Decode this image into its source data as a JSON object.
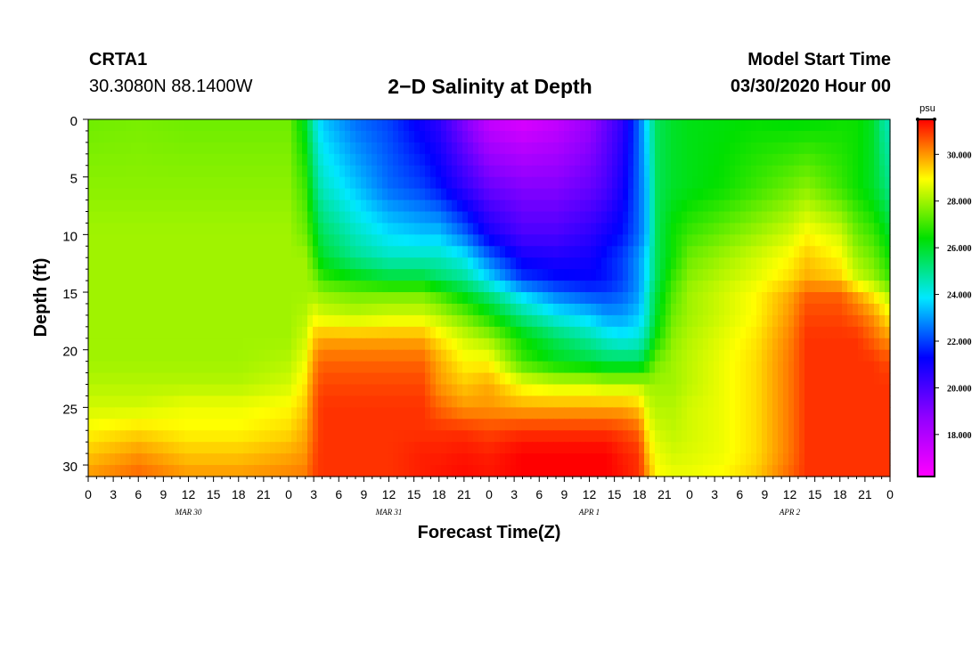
{
  "header": {
    "station_name": "CRTA1",
    "station_coords": "30.3080N 88.1400W",
    "title": "2−D Salinity at Depth",
    "start_label": "Model Start Time",
    "start_value": "03/30/2020 Hour 00"
  },
  "chart_data": {
    "type": "heatmap",
    "title": "2−D Salinity at Depth",
    "xlabel": "Forecast Time(Z)",
    "ylabel": "Depth (ft)",
    "x_tick_labels": [
      "0",
      "3",
      "6",
      "9",
      "12",
      "15",
      "18",
      "21",
      "0",
      "3",
      "6",
      "9",
      "12",
      "15",
      "18",
      "21",
      "0",
      "3",
      "6",
      "9",
      "12",
      "15",
      "18",
      "21",
      "0",
      "3",
      "6",
      "9",
      "12",
      "15",
      "18",
      "21",
      "0"
    ],
    "date_labels": [
      "MAR 30",
      "MAR 31",
      "APR 1",
      "APR 2"
    ],
    "y_ticks": [
      0,
      5,
      10,
      15,
      20,
      25,
      30
    ],
    "ylim": [
      0,
      31
    ],
    "xlim_hours": [
      0,
      96
    ],
    "colorbar": {
      "unit": "psu",
      "ticks": [
        "18.000",
        "20.000",
        "22.000",
        "24.000",
        "26.000",
        "28.000",
        "30.000"
      ],
      "range": [
        16.2,
        31.5
      ],
      "colors": [
        "#ff00ff",
        "#9000ff",
        "#0000ff",
        "#00e8ff",
        "#00e000",
        "#ffff00",
        "#ff0000"
      ]
    },
    "hours": [
      0,
      6,
      12,
      18,
      24,
      26,
      27,
      28,
      32,
      36,
      40,
      42,
      45,
      48,
      52,
      56,
      60,
      62,
      64,
      66,
      67,
      68,
      70,
      72,
      76,
      80,
      84,
      86,
      90,
      92,
      94,
      95,
      96
    ],
    "depths": [
      0,
      6,
      10,
      12,
      14,
      15,
      17,
      19,
      21,
      23,
      25,
      27,
      29,
      31
    ],
    "values": [
      [
        27.5,
        27.6,
        27.5,
        27.5,
        27.5,
        26.0,
        24.5,
        23.5,
        22.5,
        22.0,
        21.0,
        20.5,
        19.0,
        17.5,
        17.0,
        17.5,
        18.5,
        19.5,
        20.5,
        22.5,
        24.0,
        25.5,
        26.0,
        26.2,
        26.3,
        26.4,
        26.3,
        26.3,
        26.5,
        26.5,
        26.0,
        25.0,
        24.5
      ],
      [
        27.8,
        27.8,
        27.8,
        27.8,
        27.8,
        27.0,
        25.5,
        24.5,
        23.5,
        22.5,
        22.0,
        21.5,
        20.5,
        19.5,
        19.0,
        19.0,
        19.5,
        20.0,
        21.0,
        22.5,
        23.5,
        25.5,
        26.0,
        26.2,
        26.5,
        27.0,
        27.5,
        27.8,
        27.0,
        26.5,
        26.0,
        25.5,
        25.0
      ],
      [
        28.0,
        28.0,
        28.0,
        28.0,
        28.0,
        27.5,
        26.5,
        25.5,
        24.5,
        23.8,
        23.5,
        23.5,
        22.5,
        21.0,
        20.0,
        20.0,
        20.5,
        21.0,
        21.5,
        22.5,
        23.5,
        25.5,
        26.5,
        27.0,
        27.5,
        28.0,
        28.5,
        29.0,
        28.5,
        27.5,
        27.0,
        26.5,
        26.0
      ],
      [
        28.0,
        28.0,
        28.0,
        28.0,
        28.0,
        28.0,
        27.0,
        26.0,
        25.0,
        24.5,
        24.5,
        24.5,
        24.0,
        22.5,
        21.0,
        20.8,
        21.0,
        21.5,
        22.0,
        23.0,
        24.0,
        25.5,
        26.5,
        27.5,
        28.0,
        28.5,
        29.0,
        29.5,
        29.0,
        28.0,
        27.5,
        27.0,
        26.5
      ],
      [
        28.0,
        28.0,
        28.0,
        28.0,
        28.0,
        28.0,
        27.8,
        27.0,
        26.5,
        26.0,
        26.0,
        25.5,
        25.0,
        23.8,
        22.0,
        21.5,
        21.3,
        21.5,
        22.0,
        23.0,
        24.0,
        25.5,
        27.0,
        27.8,
        28.3,
        28.7,
        29.3,
        29.8,
        29.5,
        28.5,
        28.0,
        27.5,
        27.0
      ],
      [
        28.0,
        28.0,
        28.0,
        28.0,
        28.0,
        28.0,
        28.0,
        27.8,
        27.5,
        27.5,
        27.5,
        27.0,
        26.0,
        25.0,
        23.5,
        22.5,
        22.0,
        22.0,
        22.3,
        23.0,
        24.5,
        25.8,
        27.2,
        28.0,
        28.5,
        29.0,
        29.8,
        30.5,
        30.5,
        29.8,
        29.0,
        28.5,
        28.0
      ],
      [
        28.0,
        28.0,
        28.0,
        28.0,
        28.0,
        28.2,
        28.8,
        28.5,
        28.3,
        28.5,
        28.5,
        28.2,
        27.5,
        26.5,
        25.0,
        24.0,
        23.5,
        23.0,
        23.0,
        23.5,
        24.5,
        26.0,
        27.5,
        28.0,
        28.5,
        29.0,
        30.0,
        30.8,
        30.8,
        30.5,
        30.0,
        29.5,
        29.0
      ],
      [
        28.0,
        28.0,
        28.0,
        28.0,
        28.0,
        28.5,
        29.5,
        29.8,
        29.8,
        29.8,
        29.8,
        29.2,
        28.5,
        28.0,
        26.5,
        25.5,
        24.8,
        24.3,
        24.0,
        24.3,
        25.2,
        26.5,
        27.8,
        28.2,
        28.7,
        29.2,
        30.2,
        31.0,
        31.0,
        31.0,
        30.5,
        30.2,
        30.0
      ],
      [
        28.0,
        28.0,
        28.0,
        28.0,
        28.2,
        28.8,
        30.0,
        30.5,
        30.5,
        30.5,
        30.5,
        29.8,
        29.0,
        29.0,
        27.0,
        26.2,
        25.8,
        25.5,
        25.5,
        25.5,
        26.5,
        27.5,
        28.0,
        28.3,
        28.8,
        29.3,
        30.3,
        31.0,
        31.0,
        31.0,
        31.0,
        30.8,
        30.8
      ],
      [
        28.2,
        28.2,
        28.2,
        28.2,
        28.5,
        29.2,
        30.3,
        30.8,
        30.8,
        30.8,
        30.8,
        30.0,
        29.5,
        29.8,
        28.8,
        28.5,
        28.5,
        28.3,
        28.3,
        28.3,
        28.0,
        28.0,
        28.0,
        28.3,
        28.8,
        29.3,
        30.3,
        31.0,
        31.0,
        31.0,
        31.0,
        31.0,
        31.0
      ],
      [
        28.5,
        28.5,
        28.8,
        28.8,
        29.0,
        29.5,
        30.5,
        31.0,
        31.0,
        31.0,
        31.0,
        30.5,
        30.0,
        30.0,
        29.8,
        29.8,
        29.8,
        29.8,
        29.8,
        29.5,
        28.5,
        28.2,
        28.2,
        28.5,
        28.8,
        29.3,
        30.3,
        31.0,
        31.0,
        31.0,
        31.0,
        31.0,
        31.0
      ],
      [
        29.0,
        29.3,
        29.0,
        29.0,
        29.3,
        29.8,
        30.5,
        31.0,
        31.0,
        31.0,
        31.0,
        31.0,
        31.0,
        30.8,
        31.0,
        31.0,
        31.0,
        31.0,
        30.8,
        30.5,
        29.0,
        28.5,
        28.3,
        28.5,
        28.8,
        29.3,
        30.3,
        31.0,
        31.0,
        31.0,
        31.0,
        31.0,
        31.0
      ],
      [
        29.5,
        30.0,
        29.5,
        29.5,
        29.8,
        30.0,
        30.7,
        31.0,
        31.0,
        31.0,
        31.2,
        31.2,
        31.3,
        31.2,
        31.5,
        31.5,
        31.5,
        31.5,
        31.2,
        31.0,
        29.5,
        28.8,
        28.5,
        28.6,
        28.8,
        29.3,
        30.3,
        31.0,
        31.0,
        31.0,
        31.0,
        31.0,
        31.0
      ],
      [
        30.0,
        30.5,
        30.0,
        30.0,
        30.2,
        30.3,
        30.8,
        31.0,
        31.0,
        31.0,
        31.2,
        31.3,
        31.4,
        31.3,
        31.5,
        31.5,
        31.5,
        31.5,
        31.3,
        31.0,
        30.0,
        29.0,
        28.8,
        28.8,
        29.0,
        29.5,
        30.5,
        31.0,
        31.0,
        31.0,
        31.0,
        31.0,
        31.0
      ]
    ]
  }
}
